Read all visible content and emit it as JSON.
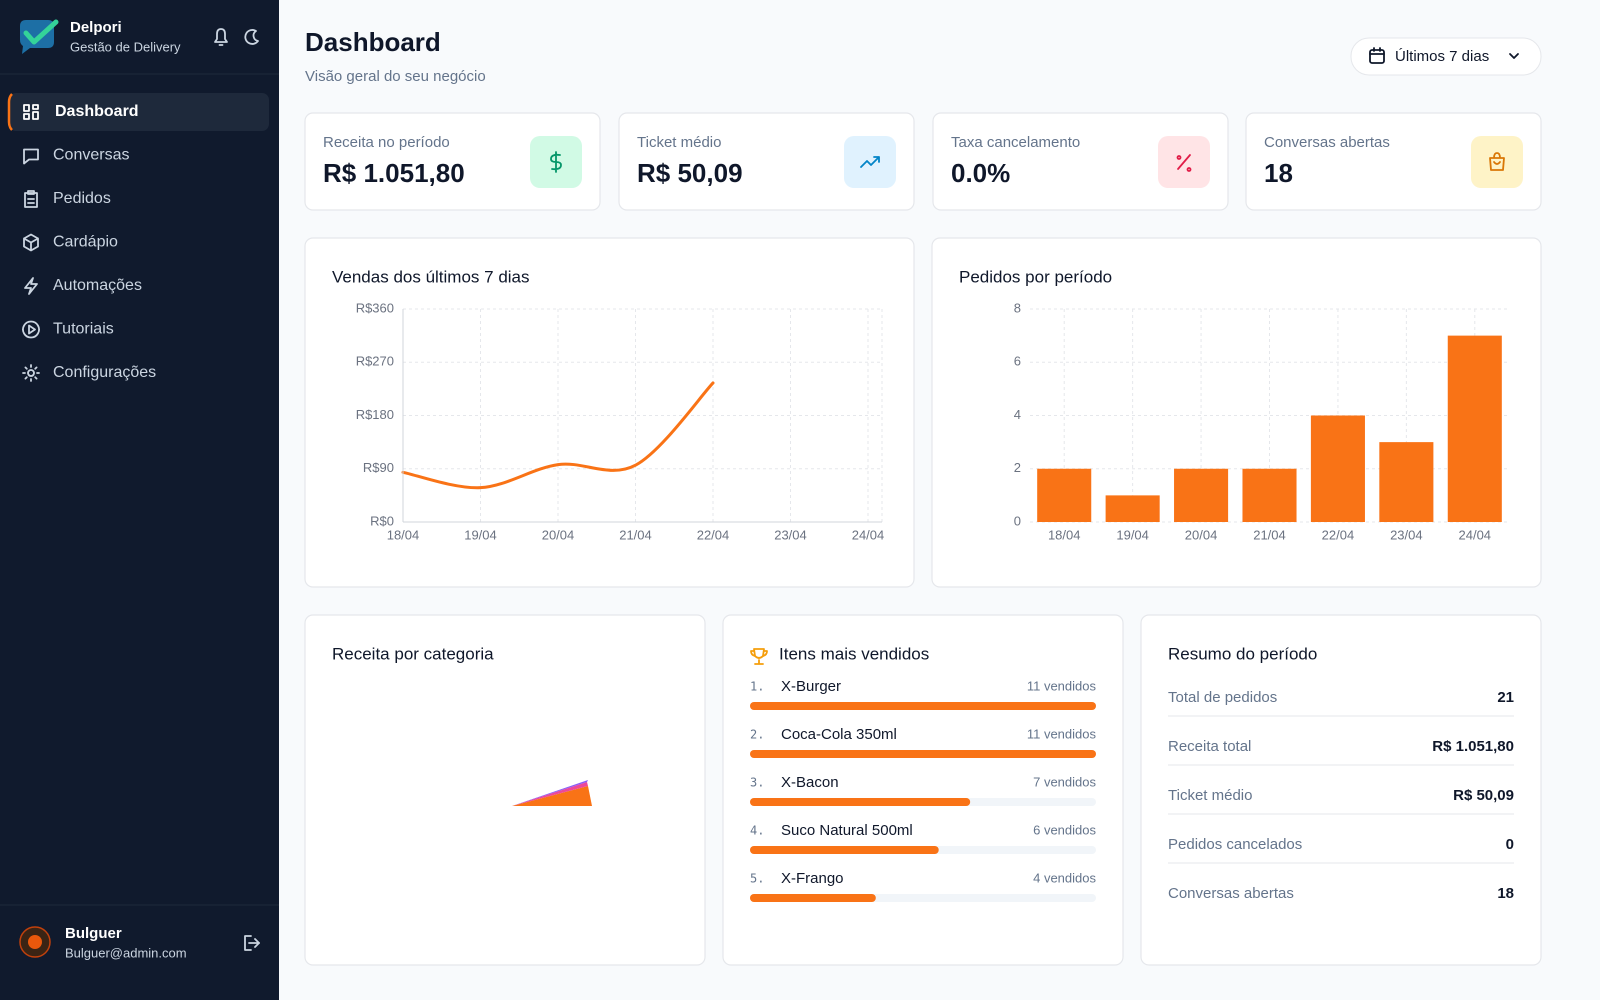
{
  "sidebar": {
    "brand": {
      "name": "Delpori",
      "subtitle": "Gestão de Delivery"
    },
    "nav": [
      "Dashboard",
      "Conversas",
      "Pedidos",
      "Cardápio",
      "Automações",
      "Tutoriais",
      "Configurações"
    ],
    "user": {
      "name": "Bulguer",
      "email": "Bulguer@admin.com"
    }
  },
  "header": {
    "title": "Dashboard",
    "subtitle": "Visão geral do seu negócio",
    "date_filter": "Últimos 7 dias"
  },
  "kpis": [
    {
      "label": "Receita no período",
      "value": "R$ 1.051,80"
    },
    {
      "label": "Ticket médio",
      "value": "R$ 50,09"
    },
    {
      "label": "Taxa cancelamento",
      "value": "0.0%"
    },
    {
      "label": "Conversas abertas",
      "value": "18"
    }
  ],
  "chart_data": [
    {
      "type": "line",
      "title": "Vendas dos últimos 7 dias",
      "categories": [
        "18/04",
        "19/04",
        "20/04",
        "21/04",
        "22/04",
        "23/04",
        "24/04"
      ],
      "values": [
        84,
        58,
        97,
        96,
        235,
        null,
        null
      ],
      "color": "#f97316",
      "ylim": [
        0,
        360
      ],
      "yticks": [
        {
          "value": 0,
          "label": "R$0"
        },
        {
          "value": 90,
          "label": "R$90"
        },
        {
          "value": 180,
          "label": "R$180"
        },
        {
          "value": 270,
          "label": "R$270"
        },
        {
          "value": 360,
          "label": "R$360"
        }
      ],
      "grid": true
    },
    {
      "type": "bar",
      "title": "Pedidos por período",
      "categories": [
        "18/04",
        "19/04",
        "20/04",
        "21/04",
        "22/04",
        "23/04",
        "24/04"
      ],
      "values": [
        2,
        1,
        2,
        2,
        4,
        3,
        7
      ],
      "color": "#f97316",
      "ylim": [
        0,
        8
      ],
      "yticks": [
        0,
        2,
        4,
        6,
        8
      ],
      "grid": true
    }
  ],
  "category_revenue": {
    "title": "Receita por categoria"
  },
  "top_items": {
    "title": "Itens mais vendidos",
    "items": [
      {
        "rank": "1.",
        "name": "X-Burger",
        "count": 11,
        "count_label": "11 vendidos"
      },
      {
        "rank": "2.",
        "name": "Coca-Cola 350ml",
        "count": 11,
        "count_label": "11 vendidos"
      },
      {
        "rank": "3.",
        "name": "X-Bacon",
        "count": 7,
        "count_label": "7 vendidos"
      },
      {
        "rank": "4.",
        "name": "Suco Natural 500ml",
        "count": 6,
        "count_label": "6 vendidos"
      },
      {
        "rank": "5.",
        "name": "X-Frango",
        "count": 4,
        "count_label": "4 vendidos"
      }
    ]
  },
  "summary": {
    "title": "Resumo do período",
    "rows": [
      {
        "label": "Total de pedidos",
        "value": "21"
      },
      {
        "label": "Receita total",
        "value": "R$ 1.051,80"
      },
      {
        "label": "Ticket médio",
        "value": "R$ 50,09"
      },
      {
        "label": "Pedidos cancelados",
        "value": "0"
      },
      {
        "label": "Conversas abertas",
        "value": "18"
      }
    ]
  }
}
